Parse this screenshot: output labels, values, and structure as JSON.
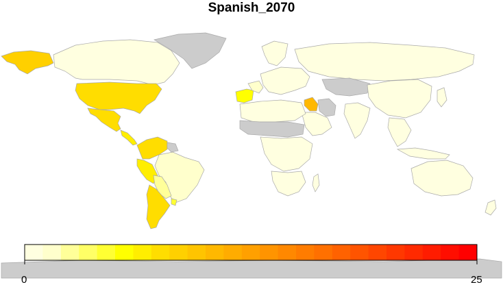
{
  "title": "Spanish_2070",
  "legend": {
    "min_label": "0",
    "max_label": "25",
    "range": [
      0,
      25
    ],
    "colors": [
      "#ffffe0",
      "#ffffcc",
      "#ffff99",
      "#ffff66",
      "#ffff33",
      "#ffff00",
      "#ffee00",
      "#ffdd00",
      "#ffd000",
      "#ffc400",
      "#ffb800",
      "#ffac00",
      "#ffa000",
      "#ff9400",
      "#ff8800",
      "#ff7c00",
      "#ff7000",
      "#ff6200",
      "#ff5400",
      "#ff4600",
      "#ff3800",
      "#ff2a00",
      "#ff1c00",
      "#ff0e00",
      "#ff0000"
    ]
  },
  "palette": {
    "no_data": "#cccccc",
    "low": "#ffffe0",
    "border": "#a8a8a8"
  },
  "regions": [
    {
      "name": "Alaska",
      "value": 8
    },
    {
      "name": "Canada",
      "value": 0.3
    },
    {
      "name": "Greenland",
      "value": null
    },
    {
      "name": "United States",
      "value": 7
    },
    {
      "name": "Mexico",
      "value": 7
    },
    {
      "name": "Central America",
      "value": 6
    },
    {
      "name": "Colombia/Venezuela",
      "value": 7
    },
    {
      "name": "Ecuador/Peru",
      "value": 6
    },
    {
      "name": "Brazil",
      "value": 1
    },
    {
      "name": "Bolivia/Paraguay",
      "value": 2
    },
    {
      "name": "Argentina/Chile",
      "value": 7
    },
    {
      "name": "Uruguay",
      "value": 4
    },
    {
      "name": "Guyanas",
      "value": null
    },
    {
      "name": "Spain",
      "value": 5
    },
    {
      "name": "France",
      "value": 1
    },
    {
      "name": "Europe",
      "value": 0.3
    },
    {
      "name": "Scandinavia",
      "value": 0.3
    },
    {
      "name": "Russia",
      "value": 0.3
    },
    {
      "name": "Iraq",
      "value": 10
    },
    {
      "name": "Iran",
      "value": null
    },
    {
      "name": "Central Asia",
      "value": null
    },
    {
      "name": "China",
      "value": 0.3
    },
    {
      "name": "India",
      "value": 0.3
    },
    {
      "name": "Arabia",
      "value": 0.3
    },
    {
      "name": "North Africa",
      "value": 0.3
    },
    {
      "name": "Sahel",
      "value": null
    },
    {
      "name": "Central Africa",
      "value": 0.3
    },
    {
      "name": "Southern Africa",
      "value": 0.3
    },
    {
      "name": "Madagascar",
      "value": 0.3
    },
    {
      "name": "Southeast Asia",
      "value": 0.3
    },
    {
      "name": "Indonesia",
      "value": 0.3
    },
    {
      "name": "Australia",
      "value": 0.3
    },
    {
      "name": "New Zealand",
      "value": 0.3
    },
    {
      "name": "Japan",
      "value": 0.3
    },
    {
      "name": "Antarctica",
      "value": null
    }
  ]
}
